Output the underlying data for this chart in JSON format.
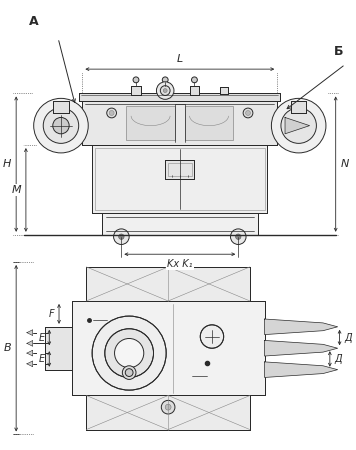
{
  "bg_color": "#ffffff",
  "line_color": "#2a2a2a",
  "dim_color": "#2a2a2a",
  "fig_width": 3.56,
  "fig_height": 4.5,
  "dpi": 100,
  "labels": {
    "A": "А",
    "B": "Б",
    "L": "L",
    "H": "H",
    "M": "M",
    "N": "N",
    "KxK1": "Kx K₁",
    "W": "В",
    "E": "E",
    "F": "F",
    "D": "Д"
  }
}
